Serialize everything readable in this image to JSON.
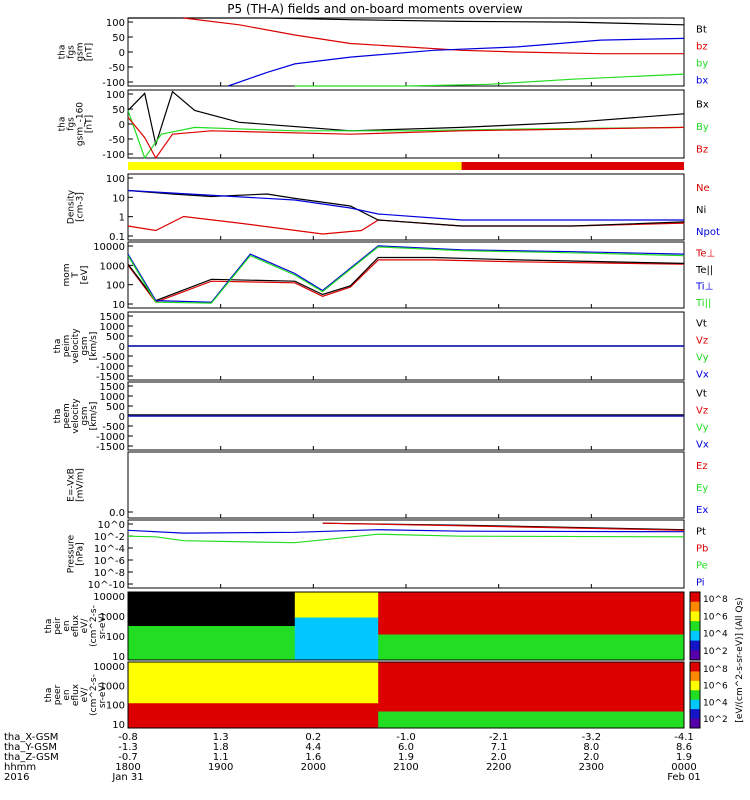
{
  "title": "P5 (TH-A) fields and on-board moments overview",
  "colors": {
    "black": "#000000",
    "red": "#dd0000",
    "green": "#22dd22",
    "blue": "#0000dd",
    "yellow": "#ffff00"
  },
  "chart_data": {
    "type": "line",
    "x_axis": {
      "ticks": [
        "1800",
        "1900",
        "2000",
        "2100",
        "2200",
        "2300",
        "0000"
      ],
      "rows": [
        {
          "label": "tha_X-GSM",
          "values": [
            "-0.8",
            "1.3",
            "0.2",
            "-1.0",
            "-2.1",
            "-3.2",
            "-4.1"
          ]
        },
        {
          "label": "tha_Y-GSM",
          "values": [
            "-1.3",
            "1.8",
            "4.4",
            "6.0",
            "7.1",
            "8.0",
            "8.6"
          ]
        },
        {
          "label": "tha_Z-GSM",
          "values": [
            "-0.7",
            "1.1",
            "1.6",
            "1.9",
            "2.0",
            "2.0",
            "1.9"
          ]
        },
        {
          "label": "hhmm",
          "values": [
            "1800",
            "1900",
            "2000",
            "2100",
            "2200",
            "2300",
            "0000"
          ]
        },
        {
          "label": "2016",
          "values": [
            "Jan 31",
            "",
            "",
            "",
            "",
            "",
            "Feb 01"
          ]
        }
      ]
    },
    "panels": [
      {
        "id": "fgs",
        "ylabel": [
          "tha",
          "fgs",
          "gsm",
          "[nT]"
        ],
        "yticks": [
          "100",
          "50",
          "0",
          "-50",
          "-100"
        ],
        "series": [
          {
            "name": "Bt",
            "color": "#000000",
            "points": [
              [
                0,
                100
              ],
              [
                10,
                100
              ],
              [
                25,
                100
              ],
              [
                40,
                95
              ],
              [
                60,
                90
              ],
              [
                80,
                88
              ],
              [
                100,
                80
              ]
            ]
          },
          {
            "name": "bz",
            "color": "#dd0000",
            "points": [
              [
                10,
                100
              ],
              [
                20,
                80
              ],
              [
                30,
                50
              ],
              [
                40,
                25
              ],
              [
                50,
                15
              ],
              [
                60,
                5
              ],
              [
                70,
                0
              ],
              [
                85,
                -5
              ],
              [
                100,
                -5
              ]
            ]
          },
          {
            "name": "by",
            "color": "#22dd22",
            "points": [
              [
                30,
                -100
              ],
              [
                50,
                -100
              ],
              [
                65,
                -95
              ],
              [
                80,
                -80
              ],
              [
                100,
                -65
              ]
            ]
          },
          {
            "name": "bx",
            "color": "#0000dd",
            "points": [
              [
                18,
                -100
              ],
              [
                25,
                -60
              ],
              [
                30,
                -35
              ],
              [
                40,
                -15
              ],
              [
                55,
                5
              ],
              [
                70,
                15
              ],
              [
                85,
                35
              ],
              [
                100,
                40
              ]
            ]
          }
        ]
      },
      {
        "id": "fgs-cal",
        "ylabel": [
          "tha",
          "fgs",
          "gsm_-160",
          "[nT]"
        ],
        "yticks": [
          "100",
          "50",
          "0",
          "-50",
          "-100"
        ],
        "series": [
          {
            "name": "Bx",
            "color": "#000000",
            "points": [
              [
                0,
                40
              ],
              [
                3,
                90
              ],
              [
                5,
                -60
              ],
              [
                8,
                95
              ],
              [
                12,
                40
              ],
              [
                20,
                5
              ],
              [
                40,
                -20
              ],
              [
                60,
                -10
              ],
              [
                80,
                5
              ],
              [
                100,
                30
              ]
            ]
          },
          {
            "name": "By",
            "color": "#22dd22",
            "points": [
              [
                0,
                40
              ],
              [
                3,
                -120
              ],
              [
                6,
                -30
              ],
              [
                12,
                -10
              ],
              [
                30,
                -20
              ],
              [
                50,
                -20
              ],
              [
                70,
                -15
              ],
              [
                100,
                -10
              ]
            ]
          },
          {
            "name": "Bz",
            "color": "#dd0000",
            "points": [
              [
                0,
                20
              ],
              [
                3,
                -40
              ],
              [
                5,
                -100
              ],
              [
                8,
                -30
              ],
              [
                15,
                -20
              ],
              [
                40,
                -30
              ],
              [
                60,
                -20
              ],
              [
                80,
                -15
              ],
              [
                100,
                -10
              ]
            ]
          }
        ]
      },
      {
        "id": "density",
        "ylabel": [
          "Density",
          "[cm-3]"
        ],
        "yticks": [
          "100",
          "10",
          "1",
          "0.1"
        ],
        "series": [
          {
            "name": "Ne",
            "color": "#dd0000",
            "points": [
              [
                0,
                0.5
              ],
              [
                5,
                0.3
              ],
              [
                10,
                1.5
              ],
              [
                20,
                0.7
              ],
              [
                35,
                0.2
              ],
              [
                42,
                0.3
              ],
              [
                45,
                1
              ],
              [
                60,
                0.5
              ],
              [
                80,
                0.5
              ],
              [
                100,
                0.7
              ]
            ]
          },
          {
            "name": "Ni",
            "color": "#000000",
            "points": [
              [
                0,
                30
              ],
              [
                8,
                20
              ],
              [
                15,
                15
              ],
              [
                25,
                20
              ],
              [
                30,
                12
              ],
              [
                40,
                5
              ],
              [
                45,
                1
              ],
              [
                60,
                0.5
              ],
              [
                80,
                0.5
              ],
              [
                100,
                0.8
              ]
            ]
          },
          {
            "name": "Npot",
            "color": "#0000dd",
            "points": [
              [
                0,
                30
              ],
              [
                30,
                10
              ],
              [
                40,
                4
              ],
              [
                45,
                2
              ],
              [
                60,
                1
              ],
              [
                80,
                1
              ],
              [
                100,
                1
              ]
            ]
          }
        ]
      },
      {
        "id": "temp",
        "ylabel": [
          "mom",
          "T",
          "[eV]"
        ],
        "yticks": [
          "10000",
          "1000",
          "100",
          "10"
        ],
        "series": [
          {
            "name": "Te⊥",
            "color": "#dd0000",
            "points": [
              [
                0,
                800
              ],
              [
                5,
                10
              ],
              [
                15,
                120
              ],
              [
                30,
                100
              ],
              [
                35,
                20
              ],
              [
                40,
                60
              ],
              [
                45,
                1500
              ],
              [
                55,
                1500
              ],
              [
                70,
                1200
              ],
              [
                100,
                900
              ]
            ]
          },
          {
            "name": "Te||",
            "color": "#000000",
            "points": [
              [
                0,
                900
              ],
              [
                5,
                12
              ],
              [
                15,
                150
              ],
              [
                30,
                120
              ],
              [
                35,
                25
              ],
              [
                40,
                70
              ],
              [
                45,
                2000
              ],
              [
                55,
                2000
              ],
              [
                70,
                1500
              ],
              [
                100,
                1000
              ]
            ]
          },
          {
            "name": "Ti⊥",
            "color": "#0000dd",
            "points": [
              [
                0,
                3000
              ],
              [
                5,
                12
              ],
              [
                15,
                10
              ],
              [
                22,
                3000
              ],
              [
                30,
                300
              ],
              [
                35,
                40
              ],
              [
                45,
                8000
              ],
              [
                60,
                5000
              ],
              [
                80,
                4000
              ],
              [
                100,
                3000
              ]
            ]
          },
          {
            "name": "Ti||",
            "color": "#22dd22",
            "points": [
              [
                0,
                2500
              ],
              [
                5,
                10
              ],
              [
                15,
                9
              ],
              [
                22,
                2500
              ],
              [
                30,
                250
              ],
              [
                35,
                35
              ],
              [
                45,
                7000
              ],
              [
                60,
                4500
              ],
              [
                80,
                3500
              ],
              [
                100,
                2500
              ]
            ]
          }
        ]
      },
      {
        "id": "ion-velocity",
        "ylabel": [
          "tha",
          "peim",
          "velocity",
          "gsm",
          "[km/s]"
        ],
        "yticks": [
          "1500",
          "1000",
          "500",
          "0",
          "-500",
          "-1000",
          "-1500"
        ],
        "series": [
          {
            "name": "Vt",
            "color": "#000000",
            "points": [
              [
                0,
                0
              ],
              [
                100,
                0
              ]
            ]
          },
          {
            "name": "Vz",
            "color": "#dd0000",
            "points": [
              [
                0,
                0
              ],
              [
                100,
                0
              ]
            ]
          },
          {
            "name": "Vy",
            "color": "#22dd22",
            "points": [
              [
                0,
                0
              ],
              [
                100,
                0
              ]
            ]
          },
          {
            "name": "Vx",
            "color": "#0000dd",
            "points": [
              [
                0,
                0
              ],
              [
                100,
                0
              ]
            ]
          }
        ]
      },
      {
        "id": "electron-velocity",
        "ylabel": [
          "tha",
          "peem",
          "velocity",
          "gsm",
          "[km/s]"
        ],
        "yticks": [
          "1500",
          "1000",
          "500",
          "0",
          "-500",
          "-1000",
          "-1500"
        ],
        "series": [
          {
            "name": "Vt",
            "color": "#000000",
            "points": [
              [
                0,
                50
              ],
              [
                100,
                50
              ]
            ]
          },
          {
            "name": "Vz",
            "color": "#dd0000",
            "points": [
              [
                0,
                0
              ],
              [
                100,
                0
              ]
            ]
          },
          {
            "name": "Vy",
            "color": "#22dd22",
            "points": [
              [
                0,
                0
              ],
              [
                100,
                0
              ]
            ]
          },
          {
            "name": "Vx",
            "color": "#0000dd",
            "points": [
              [
                0,
                0
              ],
              [
                100,
                0
              ]
            ]
          }
        ]
      },
      {
        "id": "efield",
        "ylabel": [
          "E=-VxB",
          "[mV/m]"
        ],
        "yticks": [
          "0.0"
        ],
        "series": [
          {
            "name": "Ez",
            "color": "#dd0000",
            "points": []
          },
          {
            "name": "Ey",
            "color": "#22dd22",
            "points": []
          },
          {
            "name": "Ex",
            "color": "#0000dd",
            "points": []
          }
        ]
      },
      {
        "id": "pressure",
        "ylabel": [
          "Pressure",
          "[nPa]"
        ],
        "yticks": [
          "10^0",
          "10^-2",
          "10^-4",
          "10^-6",
          "10^-8",
          "10^-10"
        ],
        "series": [
          {
            "name": "Pt",
            "color": "#000000",
            "points": [
              [
                35,
                1
              ],
              [
                60,
                0.5
              ],
              [
                100,
                0.1
              ]
            ]
          },
          {
            "name": "Pb",
            "color": "#dd0000",
            "points": [
              [
                35,
                1
              ],
              [
                60,
                0.4
              ],
              [
                100,
                0.08
              ]
            ]
          },
          {
            "name": "Pe",
            "color": "#22dd22",
            "points": [
              [
                0,
                0.01
              ],
              [
                5,
                0.008
              ],
              [
                10,
                0.002
              ],
              [
                30,
                0.001
              ],
              [
                45,
                0.02
              ],
              [
                60,
                0.01
              ],
              [
                100,
                0.008
              ]
            ]
          },
          {
            "name": "Pi",
            "color": "#0000dd",
            "points": [
              [
                0,
                0.08
              ],
              [
                10,
                0.03
              ],
              [
                30,
                0.04
              ],
              [
                45,
                0.1
              ],
              [
                60,
                0.06
              ],
              [
                100,
                0.05
              ]
            ]
          }
        ]
      },
      {
        "id": "ion-spectrogram",
        "type": "heatmap",
        "ylabel": [
          "tha",
          "peir",
          "en",
          "eflux",
          "eV/",
          "(cm^2-s-",
          "sr-eV)"
        ],
        "yticks": [
          "10000",
          "1000",
          "100",
          "10"
        ]
      },
      {
        "id": "electron-spectrogram",
        "type": "heatmap",
        "ylabel": [
          "tha",
          "peer",
          "en",
          "eflux",
          "eV/",
          "(cm^2-s-",
          "sr-eV)"
        ],
        "yticks": [
          "10000",
          "1000",
          "100",
          "10"
        ]
      }
    ],
    "colorbar": {
      "label": "[eV/(cm^2-s-sr-eV)] (All Qs)",
      "ticks_top": [
        "10^8",
        "10^6",
        "10^4",
        "10^2"
      ],
      "ticks_bottom": [
        "10^8",
        "10^6",
        "10^4",
        "10^2"
      ]
    },
    "mode_bar": {
      "segments": [
        {
          "from": 0,
          "to": 60,
          "color": "#ffff00"
        },
        {
          "from": 60,
          "to": 100,
          "color": "#dd0000"
        }
      ]
    }
  }
}
